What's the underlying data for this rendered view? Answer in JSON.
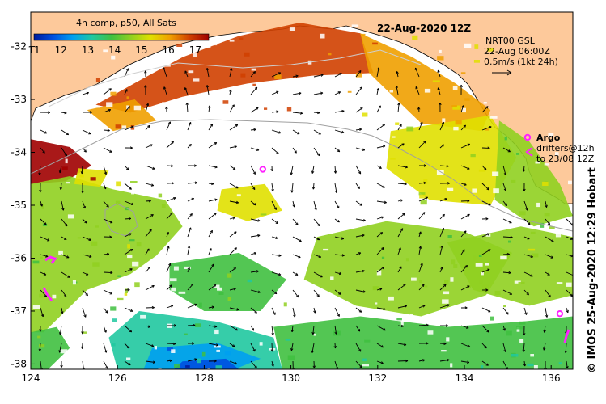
{
  "title": "22-Aug-2020 12Z",
  "colorbar": {
    "caption": "4h comp, p50, All Sats",
    "tick_labels": [
      "11",
      "12",
      "13",
      "14",
      "15",
      "16",
      "17"
    ],
    "range": [
      11,
      17.5
    ],
    "palette": [
      "#001a9c",
      "#0050e0",
      "#00a0f0",
      "#20c8a0",
      "#40c040",
      "#90d020",
      "#e0e000",
      "#f0a000",
      "#d04000",
      "#a00000"
    ]
  },
  "info": {
    "line1": "NRT00 GSL",
    "line2": "22-Aug 06:00Z",
    "line3": "0.5m/s (1kt 24h)"
  },
  "legend": {
    "argo_label": "Argo",
    "drifter_line1": "drifters@12h",
    "drifter_line2": "to 23/08 12Z"
  },
  "credit": "© IMOS 25-Aug-2020 12:29 Hobart",
  "axes": {
    "lon_ticks": [
      "124",
      "126",
      "128",
      "130",
      "132",
      "134",
      "136"
    ],
    "lat_ticks": [
      "-32",
      "-33",
      "-34",
      "-35",
      "-36",
      "-37",
      "-38"
    ],
    "lon_range": [
      124,
      136.5
    ],
    "lat_range": [
      -31.35,
      -38.1
    ]
  },
  "colors": {
    "land": "#fdc99b",
    "no_data": "#ffffff",
    "argo_marker": "#ff22ff",
    "arrows": "#000000",
    "bathymetry_contour": "#a0a0a0"
  },
  "argo_floats": [
    {
      "lon": 129.35,
      "lat": -34.32
    },
    {
      "lon": 136.2,
      "lat": -37.05
    }
  ],
  "regions": [
    {
      "temp": 16.6,
      "poly": [
        [
          125.5,
          -33.1
        ],
        [
          126.6,
          -32.6
        ],
        [
          127.5,
          -32.2
        ],
        [
          128.8,
          -31.8
        ],
        [
          130.2,
          -31.55
        ],
        [
          131.6,
          -31.75
        ],
        [
          131.9,
          -32.5
        ],
        [
          130.5,
          -32.55
        ],
        [
          129,
          -32.7
        ],
        [
          127.5,
          -32.95
        ],
        [
          126.3,
          -33.25
        ]
      ]
    },
    {
      "temp": 15.8,
      "poly": [
        [
          131.6,
          -31.75
        ],
        [
          132.8,
          -32.2
        ],
        [
          133.8,
          -32.7
        ],
        [
          134.6,
          -33.2
        ],
        [
          134.4,
          -33.6
        ],
        [
          133,
          -33.45
        ],
        [
          131.8,
          -32.5
        ]
      ]
    },
    {
      "temp": 16.2,
      "poly": [
        [
          125.3,
          -33.2
        ],
        [
          126.4,
          -33.0
        ],
        [
          126.9,
          -33.4
        ],
        [
          125.9,
          -33.6
        ]
      ]
    },
    {
      "temp": 15.2,
      "poly": [
        [
          132.3,
          -33.6
        ],
        [
          134.6,
          -33.3
        ],
        [
          135.2,
          -34.1
        ],
        [
          134.6,
          -35.0
        ],
        [
          133.2,
          -34.9
        ],
        [
          132.2,
          -34.3
        ]
      ]
    },
    {
      "temp": 14.6,
      "poly": [
        [
          134.8,
          -33.4
        ],
        [
          135.5,
          -33.8
        ],
        [
          136.2,
          -34.6
        ],
        [
          136.5,
          -35.2
        ],
        [
          135.6,
          -35.4
        ],
        [
          134.7,
          -34.9
        ]
      ]
    },
    {
      "temp": 17.2,
      "poly": [
        [
          124,
          -33.75
        ],
        [
          124.9,
          -33.9
        ],
        [
          125.4,
          -34.25
        ],
        [
          124.8,
          -34.55
        ],
        [
          124,
          -34.6
        ]
      ]
    },
    {
      "temp": 14.7,
      "poly": [
        [
          124,
          -34.6
        ],
        [
          124.9,
          -34.45
        ],
        [
          125.9,
          -34.7
        ],
        [
          127.1,
          -34.9
        ],
        [
          127.5,
          -35.4
        ],
        [
          126.9,
          -35.95
        ],
        [
          126.3,
          -36.3
        ],
        [
          125.3,
          -36.6
        ],
        [
          124.8,
          -37.0
        ],
        [
          124.3,
          -37.4
        ],
        [
          124,
          -37.4
        ]
      ]
    },
    {
      "temp": 15.6,
      "poly": [
        [
          125.1,
          -34.3
        ],
        [
          125.8,
          -34.35
        ],
        [
          125.6,
          -34.65
        ],
        [
          125.0,
          -34.6
        ]
      ]
    },
    {
      "temp": 14.3,
      "poly": [
        [
          130.6,
          -35.6
        ],
        [
          132.2,
          -35.3
        ],
        [
          134,
          -35.5
        ],
        [
          135.1,
          -35.9
        ],
        [
          134.5,
          -36.7
        ],
        [
          133.0,
          -37.1
        ],
        [
          131.5,
          -36.9
        ],
        [
          130.3,
          -36.4
        ]
      ]
    },
    {
      "temp": 14.9,
      "poly": [
        [
          133.6,
          -35.7
        ],
        [
          135.3,
          -35.4
        ],
        [
          136.5,
          -35.6
        ],
        [
          136.5,
          -36.7
        ],
        [
          135.5,
          -36.9
        ],
        [
          134.2,
          -36.6
        ]
      ]
    },
    {
      "temp": 14.0,
      "poly": [
        [
          127.2,
          -36.1
        ],
        [
          128.8,
          -35.9
        ],
        [
          129.9,
          -36.4
        ],
        [
          129.3,
          -37.0
        ],
        [
          128.0,
          -37.0
        ],
        [
          127.2,
          -36.6
        ]
      ]
    },
    {
      "temp": 13.3,
      "poly": [
        [
          126.5,
          -37.0
        ],
        [
          128.3,
          -37.2
        ],
        [
          129.6,
          -37.5
        ],
        [
          129.8,
          -38.1
        ],
        [
          126.0,
          -38.1
        ],
        [
          125.8,
          -37.5
        ]
      ]
    },
    {
      "temp": 13.6,
      "poly": [
        [
          129.6,
          -37.3
        ],
        [
          131.6,
          -37.1
        ],
        [
          133.6,
          -37.3
        ],
        [
          135.3,
          -37.2
        ],
        [
          136.5,
          -37.1
        ],
        [
          136.5,
          -38.1
        ],
        [
          129.8,
          -38.1
        ]
      ]
    },
    {
      "temp": 12.2,
      "poly": [
        [
          126.8,
          -37.7
        ],
        [
          128.3,
          -37.6
        ],
        [
          129.3,
          -37.9
        ],
        [
          128.7,
          -38.1
        ],
        [
          126.6,
          -38.1
        ]
      ]
    },
    {
      "temp": 11.6,
      "poly": [
        [
          127.5,
          -37.95
        ],
        [
          128.5,
          -37.9
        ],
        [
          128.8,
          -38.1
        ],
        [
          127.3,
          -38.1
        ]
      ]
    },
    {
      "temp": 14.0,
      "poly": [
        [
          124,
          -37.4
        ],
        [
          124.6,
          -37.3
        ],
        [
          124.9,
          -37.7
        ],
        [
          124.4,
          -38.1
        ],
        [
          124,
          -38.1
        ]
      ]
    },
    {
      "temp": 15.0,
      "poly": [
        [
          128.4,
          -34.7
        ],
        [
          129.4,
          -34.6
        ],
        [
          129.8,
          -35.1
        ],
        [
          129.0,
          -35.3
        ],
        [
          128.3,
          -35.1
        ]
      ]
    }
  ]
}
